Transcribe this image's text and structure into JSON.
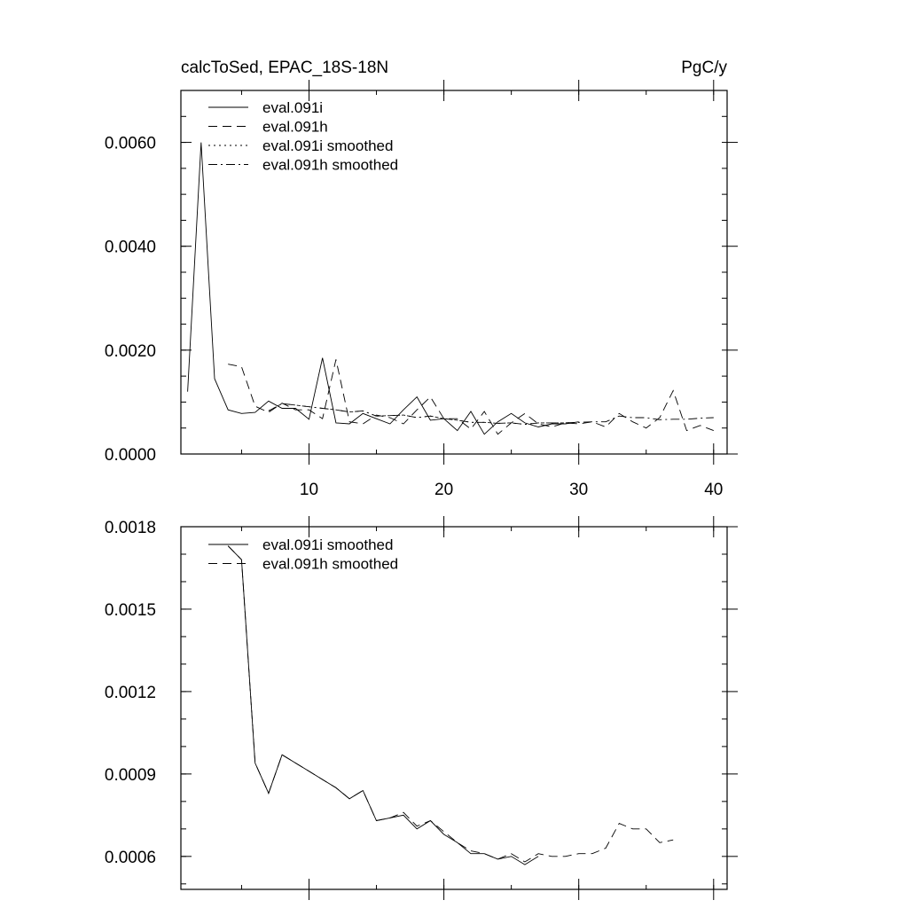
{
  "chart_data": [
    {
      "type": "line",
      "title": "calcToSed, EPAC_18S-18N",
      "units": "PgC/y",
      "xlim": [
        0.5,
        41
      ],
      "ylim": [
        0,
        0.007
      ],
      "x_ticks": [
        10,
        20,
        30,
        40
      ],
      "x_tick_labels": [
        "10",
        "20",
        "30",
        "40"
      ],
      "y_ticks": [
        0,
        0.002,
        0.004,
        0.006
      ],
      "y_tick_labels": [
        "0.0000",
        "0.0020",
        "0.0040",
        "0.0060"
      ],
      "legend": [
        "eval.091i",
        "eval.091h",
        "eval.091i smoothed",
        "eval.091h smoothed"
      ],
      "legend_position": "top-left",
      "series": [
        {
          "name": "eval.091i",
          "dash": "solid",
          "x": [
            1,
            2,
            3,
            4,
            5,
            6,
            7,
            8,
            9,
            10,
            11,
            12,
            13,
            14,
            15,
            16,
            17,
            18,
            19,
            20,
            21,
            22,
            23,
            24,
            25,
            26,
            27,
            28,
            29,
            30
          ],
          "values": [
            0.0012,
            0.006,
            0.00145,
            0.00085,
            0.00078,
            0.0008,
            0.00102,
            0.00088,
            0.00088,
            0.00067,
            0.00185,
            0.0006,
            0.00058,
            0.00078,
            0.00068,
            0.00058,
            0.00085,
            0.0011,
            0.00065,
            0.00068,
            0.00045,
            0.00082,
            0.00038,
            0.00062,
            0.00078,
            0.0006,
            0.00052,
            0.00058,
            0.00058,
            0.00062
          ]
        },
        {
          "name": "eval.091h",
          "dash": "dashed",
          "x": [
            4,
            5,
            6,
            7,
            8,
            9,
            10,
            11,
            12,
            13,
            14,
            15,
            16,
            17,
            18,
            19,
            20,
            21,
            22,
            23,
            24,
            25,
            26,
            27,
            28,
            29,
            30,
            31,
            32,
            33,
            34,
            35,
            36,
            37,
            38,
            39,
            40
          ],
          "values": [
            0.00173,
            0.00168,
            0.00092,
            0.0008,
            0.00098,
            0.00085,
            0.00085,
            0.00068,
            0.00182,
            0.00062,
            0.00058,
            0.00075,
            0.0007,
            0.00058,
            0.00085,
            0.0011,
            0.00068,
            0.00068,
            0.00048,
            0.00082,
            0.00038,
            0.0006,
            0.00078,
            0.00058,
            0.00052,
            0.0006,
            0.00058,
            0.00062,
            0.00052,
            0.00078,
            0.00062,
            0.0005,
            0.0007,
            0.00122,
            0.00045,
            0.00055,
            0.00045
          ]
        },
        {
          "name": "eval.091i smoothed",
          "dash": "dotted",
          "x": [
            7,
            8,
            9,
            10,
            11,
            12,
            13,
            14,
            15,
            16,
            17,
            18,
            19,
            20,
            21,
            22,
            23,
            24,
            25,
            26,
            27,
            28,
            29,
            30
          ],
          "values": [
            0.00083,
            0.00097,
            0.00094,
            0.00091,
            0.00088,
            0.00085,
            0.00081,
            0.00083,
            0.00073,
            0.00074,
            0.00075,
            0.0007,
            0.00073,
            0.00068,
            0.00065,
            0.00061,
            0.00061,
            0.00059,
            0.0006,
            0.00057,
            0.0006,
            0.0006,
            0.0006,
            0.00061
          ]
        },
        {
          "name": "eval.091h smoothed",
          "dash": "dashdot",
          "x": [
            7,
            8,
            9,
            10,
            11,
            12,
            13,
            14,
            15,
            16,
            17,
            18,
            19,
            20,
            21,
            22,
            23,
            24,
            25,
            26,
            27,
            28,
            29,
            30,
            31,
            32,
            33,
            34,
            35,
            36,
            37,
            38,
            39,
            40
          ],
          "values": [
            0.00083,
            0.00097,
            0.00094,
            0.00091,
            0.00088,
            0.00085,
            0.00081,
            0.00083,
            0.00073,
            0.00074,
            0.00075,
            0.0007,
            0.00073,
            0.00068,
            0.00065,
            0.00061,
            0.00061,
            0.00059,
            0.0006,
            0.00057,
            0.0006,
            0.0006,
            0.0006,
            0.00061,
            0.00062,
            0.00062,
            0.00073,
            0.0007,
            0.0007,
            0.00066,
            0.00067,
            0.00067,
            0.00069,
            0.0007
          ]
        }
      ]
    },
    {
      "type": "line",
      "xlim": [
        0.5,
        41
      ],
      "ylim": [
        0.00048,
        0.0018
      ],
      "x_ticks": [
        10,
        20,
        30,
        40
      ],
      "y_ticks": [
        0.0006,
        0.0009,
        0.0012,
        0.0015,
        0.0018
      ],
      "y_tick_labels": [
        "0.0006",
        "0.0009",
        "0.0012",
        "0.0015",
        "0.0018"
      ],
      "legend": [
        "eval.091i smoothed",
        "eval.091h smoothed"
      ],
      "legend_position": "top-left",
      "series": [
        {
          "name": "eval.091i smoothed",
          "dash": "solid",
          "x": [
            4,
            5,
            6,
            7,
            8,
            9,
            10,
            11,
            12,
            13,
            14,
            15,
            16,
            17,
            18,
            19,
            20,
            21,
            22,
            23,
            24,
            25,
            26,
            27
          ],
          "values": [
            0.00173,
            0.00168,
            0.00094,
            0.00083,
            0.00097,
            0.00094,
            0.00091,
            0.00088,
            0.00085,
            0.00081,
            0.00084,
            0.00073,
            0.00074,
            0.00075,
            0.0007,
            0.00073,
            0.00068,
            0.00065,
            0.00061,
            0.00061,
            0.00059,
            0.0006,
            0.00057,
            0.0006
          ]
        },
        {
          "name": "eval.091h smoothed",
          "dash": "dashed",
          "x": [
            4,
            5,
            6,
            7,
            8,
            9,
            10,
            11,
            12,
            13,
            14,
            15,
            16,
            17,
            18,
            19,
            20,
            21,
            22,
            23,
            24,
            25,
            26,
            27,
            28,
            29,
            30,
            31,
            32,
            33,
            34,
            35,
            36,
            37
          ],
          "values": [
            0.00173,
            0.00168,
            0.00094,
            0.00083,
            0.00097,
            0.00094,
            0.00091,
            0.00088,
            0.00085,
            0.00081,
            0.00084,
            0.00073,
            0.00074,
            0.00076,
            0.00071,
            0.00073,
            0.00069,
            0.00065,
            0.00062,
            0.00061,
            0.00059,
            0.00061,
            0.00058,
            0.00061,
            0.0006,
            0.0006,
            0.00061,
            0.00061,
            0.00063,
            0.00072,
            0.0007,
            0.0007,
            0.00065,
            0.00066
          ]
        }
      ]
    }
  ]
}
